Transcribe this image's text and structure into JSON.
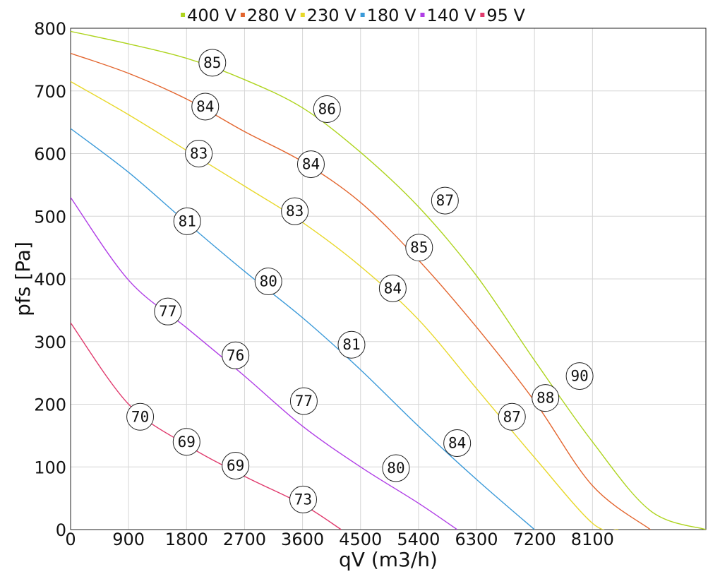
{
  "chart_data": {
    "type": "line",
    "xlabel": "qV (m3/h)",
    "ylabel": "pfs [Pa]",
    "xlim": [
      0,
      9860
    ],
    "ylim": [
      0,
      800
    ],
    "x_ticks": [
      0,
      900,
      1800,
      2700,
      3600,
      4500,
      5400,
      6300,
      7200,
      8100
    ],
    "x_tick_labels": [
      "0",
      "900",
      "1800",
      "2700",
      "3600",
      "4500",
      "5400",
      "6300",
      "7200",
      "8100"
    ],
    "y_ticks": [
      0,
      100,
      200,
      300,
      400,
      500,
      600,
      700,
      800
    ],
    "y_tick_labels": [
      "0",
      "100",
      "200",
      "300",
      "400",
      "500",
      "600",
      "700",
      "800"
    ],
    "grid": true,
    "legend_position": "top-center",
    "series": [
      {
        "name": "400 V",
        "color": "#aed41e",
        "points": [
          [
            0,
            795
          ],
          [
            900,
            775
          ],
          [
            1800,
            752
          ],
          [
            2700,
            718
          ],
          [
            3600,
            673
          ],
          [
            4500,
            602
          ],
          [
            5400,
            515
          ],
          [
            6300,
            405
          ],
          [
            7200,
            270
          ],
          [
            8100,
            140
          ],
          [
            9000,
            30
          ],
          [
            9860,
            0
          ]
        ],
        "labels": [
          {
            "x": 2200,
            "y": 745,
            "text": "85"
          },
          {
            "x": 3980,
            "y": 671,
            "text": "86"
          },
          {
            "x": 5810,
            "y": 525,
            "text": "87"
          },
          {
            "x": 7900,
            "y": 245,
            "text": "90"
          }
        ]
      },
      {
        "name": "280 V",
        "color": "#e3652e",
        "points": [
          [
            0,
            760
          ],
          [
            900,
            728
          ],
          [
            1800,
            687
          ],
          [
            2700,
            635
          ],
          [
            3600,
            587
          ],
          [
            4500,
            522
          ],
          [
            5400,
            430
          ],
          [
            6300,
            323
          ],
          [
            7200,
            205
          ],
          [
            8100,
            70
          ],
          [
            9000,
            0
          ]
        ],
        "labels": [
          {
            "x": 2090,
            "y": 675,
            "text": "84"
          },
          {
            "x": 3730,
            "y": 583,
            "text": "84"
          },
          {
            "x": 5410,
            "y": 450,
            "text": "85"
          },
          {
            "x": 7370,
            "y": 210,
            "text": "88"
          }
        ]
      },
      {
        "name": "230 V",
        "color": "#e8d82a",
        "points": [
          [
            0,
            715
          ],
          [
            900,
            662
          ],
          [
            1800,
            605
          ],
          [
            2700,
            548
          ],
          [
            3600,
            490
          ],
          [
            4500,
            420
          ],
          [
            5400,
            335
          ],
          [
            6300,
            225
          ],
          [
            7200,
            115
          ],
          [
            8100,
            10
          ],
          [
            8500,
            0
          ]
        ],
        "labels": [
          {
            "x": 1990,
            "y": 600,
            "text": "83"
          },
          {
            "x": 3480,
            "y": 508,
            "text": "83"
          },
          {
            "x": 5000,
            "y": 385,
            "text": "84"
          },
          {
            "x": 6850,
            "y": 180,
            "text": "87"
          }
        ]
      },
      {
        "name": "180 V",
        "color": "#3b9ad9",
        "points": [
          [
            0,
            640
          ],
          [
            900,
            570
          ],
          [
            1800,
            490
          ],
          [
            2700,
            412
          ],
          [
            3600,
            338
          ],
          [
            4500,
            255
          ],
          [
            5400,
            165
          ],
          [
            6300,
            80
          ],
          [
            7200,
            0
          ]
        ],
        "labels": [
          {
            "x": 1810,
            "y": 492,
            "text": "81"
          },
          {
            "x": 3070,
            "y": 396,
            "text": "80"
          },
          {
            "x": 4360,
            "y": 295,
            "text": "81"
          },
          {
            "x": 6000,
            "y": 138,
            "text": "84"
          }
        ]
      },
      {
        "name": "140 V",
        "color": "#b03ee6",
        "points": [
          [
            0,
            530
          ],
          [
            900,
            398
          ],
          [
            1800,
            322
          ],
          [
            2700,
            245
          ],
          [
            3600,
            165
          ],
          [
            4500,
            100
          ],
          [
            5400,
            42
          ],
          [
            6000,
            0
          ]
        ],
        "labels": [
          {
            "x": 1510,
            "y": 348,
            "text": "77"
          },
          {
            "x": 2560,
            "y": 278,
            "text": "76"
          },
          {
            "x": 3620,
            "y": 205,
            "text": "77"
          },
          {
            "x": 5050,
            "y": 98,
            "text": "80"
          }
        ]
      },
      {
        "name": "95 V",
        "color": "#e03a6d",
        "points": [
          [
            0,
            330
          ],
          [
            900,
            200
          ],
          [
            1800,
            135
          ],
          [
            2700,
            85
          ],
          [
            3600,
            40
          ],
          [
            4200,
            0
          ]
        ],
        "labels": [
          {
            "x": 1080,
            "y": 180,
            "text": "70"
          },
          {
            "x": 1800,
            "y": 140,
            "text": "69"
          },
          {
            "x": 2560,
            "y": 102,
            "text": "69"
          },
          {
            "x": 3610,
            "y": 48,
            "text": "73"
          }
        ]
      }
    ]
  }
}
